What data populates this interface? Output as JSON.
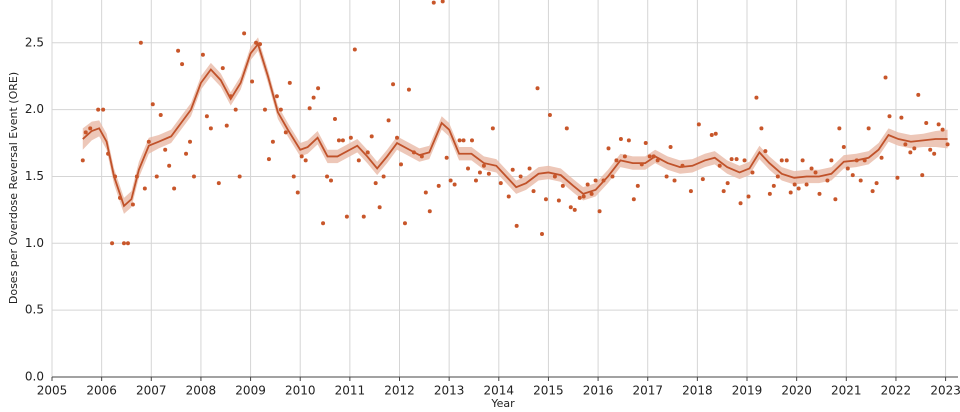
{
  "chart_data": {
    "type": "scatter_smooth",
    "xlabel": "Year",
    "ylabel": "Doses per Overdose Reversal Event (ORE)",
    "xlim": [
      2005,
      2023.25
    ],
    "ylim": [
      0,
      2.82
    ],
    "xticks": [
      2005,
      2006,
      2007,
      2008,
      2009,
      2010,
      2011,
      2012,
      2013,
      2014,
      2015,
      2016,
      2017,
      2018,
      2019,
      2020,
      2021,
      2022,
      2023
    ],
    "yticks": [
      {
        "value": 0,
        "label": "0.0"
      },
      0.5,
      {
        "value": 1,
        "label": "1.0"
      },
      1.5,
      {
        "value": 2,
        "label": "2.0"
      },
      2.5
    ],
    "grid": true,
    "series": [
      {
        "type": "scatter",
        "color": "#c8562a",
        "x": [
          2005.62,
          2005.68,
          2005.77,
          2005.93,
          2006.03,
          2006.13,
          2006.21,
          2006.27,
          2006.37,
          2006.45,
          2006.53,
          2006.63,
          2006.71,
          2006.79,
          2006.87,
          2006.95,
          2007.03,
          2007.11,
          2007.19,
          2007.28,
          2007.36,
          2007.46,
          2007.54,
          2007.62,
          2007.7,
          2007.78,
          2007.86,
          2008.04,
          2008.12,
          2008.2,
          2008.36,
          2008.44,
          2008.52,
          2008.6,
          2008.7,
          2008.78,
          2008.87,
          2009.03,
          2009.11,
          2009.19,
          2009.29,
          2009.37,
          2009.45,
          2009.53,
          2009.61,
          2009.71,
          2009.79,
          2009.87,
          2009.95,
          2010.03,
          2010.11,
          2010.19,
          2010.27,
          2010.36,
          2010.46,
          2010.54,
          2010.62,
          2010.7,
          2010.78,
          2010.86,
          2010.94,
          2011.02,
          2011.1,
          2011.18,
          2011.28,
          2011.36,
          2011.44,
          2011.52,
          2011.6,
          2011.68,
          2011.78,
          2011.87,
          2011.95,
          2012.03,
          2012.11,
          2012.19,
          2012.29,
          2012.45,
          2012.53,
          2012.61,
          2012.69,
          2012.79,
          2012.87,
          2012.95,
          2013.03,
          2013.11,
          2013.21,
          2013.29,
          2013.38,
          2013.46,
          2013.54,
          2013.62,
          2013.7,
          2013.8,
          2013.88,
          2014.04,
          2014.2,
          2014.28,
          2014.36,
          2014.44,
          2014.62,
          2014.7,
          2014.78,
          2014.87,
          2014.95,
          2015.03,
          2015.13,
          2015.21,
          2015.29,
          2015.37,
          2015.45,
          2015.53,
          2015.63,
          2015.71,
          2015.79,
          2015.87,
          2015.95,
          2016.03,
          2016.11,
          2016.21,
          2016.29,
          2016.37,
          2016.46,
          2016.54,
          2016.62,
          2016.72,
          2016.8,
          2016.88,
          2016.96,
          2017.04,
          2017.12,
          2017.2,
          2017.38,
          2017.46,
          2017.54,
          2017.7,
          2017.87,
          2018.03,
          2018.11,
          2018.29,
          2018.37,
          2018.45,
          2018.53,
          2018.61,
          2018.69,
          2018.79,
          2018.87,
          2018.95,
          2019.03,
          2019.11,
          2019.19,
          2019.29,
          2019.37,
          2019.46,
          2019.54,
          2019.62,
          2019.7,
          2019.8,
          2019.88,
          2019.96,
          2020.04,
          2020.12,
          2020.2,
          2020.3,
          2020.38,
          2020.46,
          2020.62,
          2020.7,
          2020.78,
          2020.86,
          2020.95,
          2021.03,
          2021.13,
          2021.21,
          2021.29,
          2021.37,
          2021.45,
          2021.53,
          2021.61,
          2021.71,
          2021.79,
          2021.87,
          2022.03,
          2022.11,
          2022.19,
          2022.29,
          2022.37,
          2022.45,
          2022.53,
          2022.61,
          2022.69,
          2022.77,
          2022.86,
          2022.94,
          2023.04
        ],
        "values": [
          1.62,
          1.83,
          1.86,
          2.0,
          2.0,
          1.67,
          1.0,
          1.5,
          1.34,
          1.0,
          1.0,
          1.29,
          1.5,
          2.5,
          1.41,
          1.76,
          2.04,
          1.5,
          1.96,
          1.7,
          1.58,
          1.41,
          2.44,
          2.34,
          1.67,
          1.76,
          1.5,
          2.41,
          1.95,
          1.86,
          1.45,
          2.31,
          1.88,
          2.1,
          2.0,
          1.5,
          2.57,
          2.21,
          2.5,
          2.49,
          2.0,
          1.63,
          1.76,
          2.1,
          2.0,
          1.83,
          2.2,
          1.5,
          1.38,
          1.65,
          1.62,
          2.01,
          2.09,
          2.16,
          1.15,
          1.5,
          1.47,
          1.93,
          1.77,
          1.77,
          1.2,
          1.79,
          2.45,
          1.62,
          1.2,
          1.68,
          1.8,
          1.45,
          1.27,
          1.5,
          1.92,
          2.19,
          1.79,
          1.59,
          1.15,
          2.15,
          1.68,
          1.65,
          1.38,
          1.24,
          2.8,
          1.43,
          2.81,
          1.64,
          1.47,
          1.44,
          1.77,
          1.77,
          1.56,
          1.77,
          1.47,
          1.53,
          1.58,
          1.52,
          1.86,
          1.45,
          1.35,
          1.55,
          1.13,
          1.5,
          1.56,
          1.39,
          2.16,
          1.07,
          1.33,
          1.96,
          1.5,
          1.32,
          1.43,
          1.86,
          1.27,
          1.25,
          1.34,
          1.35,
          1.44,
          1.37,
          1.47,
          1.24,
          1.47,
          1.71,
          1.5,
          1.62,
          1.78,
          1.65,
          1.77,
          1.33,
          1.43,
          1.59,
          1.75,
          1.65,
          1.65,
          1.62,
          1.5,
          1.72,
          1.47,
          1.58,
          1.39,
          1.89,
          1.48,
          1.81,
          1.82,
          1.58,
          1.39,
          1.45,
          1.63,
          1.63,
          1.3,
          1.62,
          1.35,
          1.53,
          2.09,
          1.86,
          1.69,
          1.37,
          1.43,
          1.5,
          1.62,
          1.62,
          1.38,
          1.44,
          1.41,
          1.62,
          1.44,
          1.56,
          1.53,
          1.37,
          1.47,
          1.62,
          1.33,
          1.86,
          1.72,
          1.56,
          1.51,
          1.62,
          1.47,
          1.62,
          1.86,
          1.39,
          1.45,
          1.64,
          2.24,
          1.95,
          1.49,
          1.94,
          1.74,
          1.68,
          1.71,
          2.11,
          1.51,
          1.9,
          1.7,
          1.67,
          1.89,
          1.85,
          1.74
        ]
      },
      {
        "type": "smooth",
        "color": "#c0522a",
        "band_color": "#e8b9a6",
        "x": [
          2005.62,
          2005.8,
          2005.95,
          2006.1,
          2006.25,
          2006.45,
          2006.6,
          2006.75,
          2006.95,
          2007.15,
          2007.4,
          2007.6,
          2007.8,
          2008.0,
          2008.2,
          2008.4,
          2008.6,
          2008.8,
          2009.0,
          2009.15,
          2009.35,
          2009.55,
          2009.75,
          2010.0,
          2010.15,
          2010.35,
          2010.55,
          2010.75,
          2011.0,
          2011.15,
          2011.35,
          2011.55,
          2011.75,
          2011.95,
          2012.2,
          2012.4,
          2012.6,
          2012.85,
          2013.0,
          2013.2,
          2013.45,
          2013.7,
          2013.95,
          2014.15,
          2014.35,
          2014.55,
          2014.8,
          2015.0,
          2015.25,
          2015.5,
          2015.7,
          2015.95,
          2016.2,
          2016.45,
          2016.7,
          2016.95,
          2017.15,
          2017.4,
          2017.65,
          2017.9,
          2018.15,
          2018.35,
          2018.6,
          2018.85,
          2019.05,
          2019.25,
          2019.45,
          2019.7,
          2019.95,
          2020.2,
          2020.45,
          2020.7,
          2020.95,
          2021.2,
          2021.45,
          2021.65,
          2021.85,
          2022.05,
          2022.3,
          2022.55,
          2022.8,
          2023.04
        ],
        "values": [
          1.78,
          1.84,
          1.86,
          1.76,
          1.5,
          1.28,
          1.33,
          1.55,
          1.73,
          1.76,
          1.8,
          1.9,
          2.0,
          2.2,
          2.3,
          2.22,
          2.08,
          2.2,
          2.42,
          2.49,
          2.25,
          1.98,
          1.85,
          1.7,
          1.72,
          1.79,
          1.65,
          1.65,
          1.7,
          1.73,
          1.65,
          1.56,
          1.65,
          1.75,
          1.7,
          1.66,
          1.68,
          1.9,
          1.85,
          1.67,
          1.67,
          1.6,
          1.58,
          1.5,
          1.42,
          1.45,
          1.52,
          1.53,
          1.51,
          1.43,
          1.37,
          1.4,
          1.5,
          1.62,
          1.6,
          1.6,
          1.65,
          1.6,
          1.57,
          1.58,
          1.62,
          1.64,
          1.57,
          1.53,
          1.56,
          1.68,
          1.6,
          1.52,
          1.49,
          1.5,
          1.5,
          1.52,
          1.61,
          1.62,
          1.64,
          1.7,
          1.81,
          1.78,
          1.76,
          1.77,
          1.78,
          1.78
        ],
        "lower": [
          1.7,
          1.77,
          1.8,
          1.7,
          1.44,
          1.22,
          1.27,
          1.49,
          1.67,
          1.71,
          1.75,
          1.85,
          1.95,
          2.15,
          2.25,
          2.17,
          2.03,
          2.15,
          2.37,
          2.44,
          2.2,
          1.93,
          1.8,
          1.65,
          1.67,
          1.74,
          1.6,
          1.6,
          1.65,
          1.68,
          1.6,
          1.51,
          1.6,
          1.7,
          1.65,
          1.61,
          1.63,
          1.85,
          1.8,
          1.62,
          1.62,
          1.55,
          1.53,
          1.45,
          1.37,
          1.4,
          1.47,
          1.48,
          1.46,
          1.38,
          1.32,
          1.35,
          1.45,
          1.57,
          1.55,
          1.55,
          1.6,
          1.55,
          1.52,
          1.53,
          1.57,
          1.59,
          1.52,
          1.48,
          1.51,
          1.63,
          1.55,
          1.47,
          1.44,
          1.45,
          1.45,
          1.47,
          1.56,
          1.57,
          1.59,
          1.65,
          1.76,
          1.73,
          1.71,
          1.72,
          1.72,
          1.71
        ],
        "upper": [
          1.86,
          1.91,
          1.92,
          1.82,
          1.56,
          1.34,
          1.39,
          1.61,
          1.79,
          1.81,
          1.85,
          1.95,
          2.05,
          2.25,
          2.35,
          2.27,
          2.13,
          2.25,
          2.47,
          2.54,
          2.3,
          2.03,
          1.9,
          1.75,
          1.77,
          1.84,
          1.7,
          1.7,
          1.75,
          1.78,
          1.7,
          1.61,
          1.7,
          1.8,
          1.75,
          1.71,
          1.73,
          1.95,
          1.9,
          1.72,
          1.72,
          1.65,
          1.63,
          1.55,
          1.47,
          1.5,
          1.57,
          1.58,
          1.56,
          1.48,
          1.42,
          1.45,
          1.55,
          1.67,
          1.65,
          1.65,
          1.7,
          1.65,
          1.62,
          1.63,
          1.67,
          1.69,
          1.62,
          1.58,
          1.61,
          1.73,
          1.65,
          1.57,
          1.54,
          1.55,
          1.55,
          1.57,
          1.66,
          1.67,
          1.69,
          1.75,
          1.86,
          1.83,
          1.81,
          1.82,
          1.84,
          1.85
        ]
      }
    ]
  }
}
